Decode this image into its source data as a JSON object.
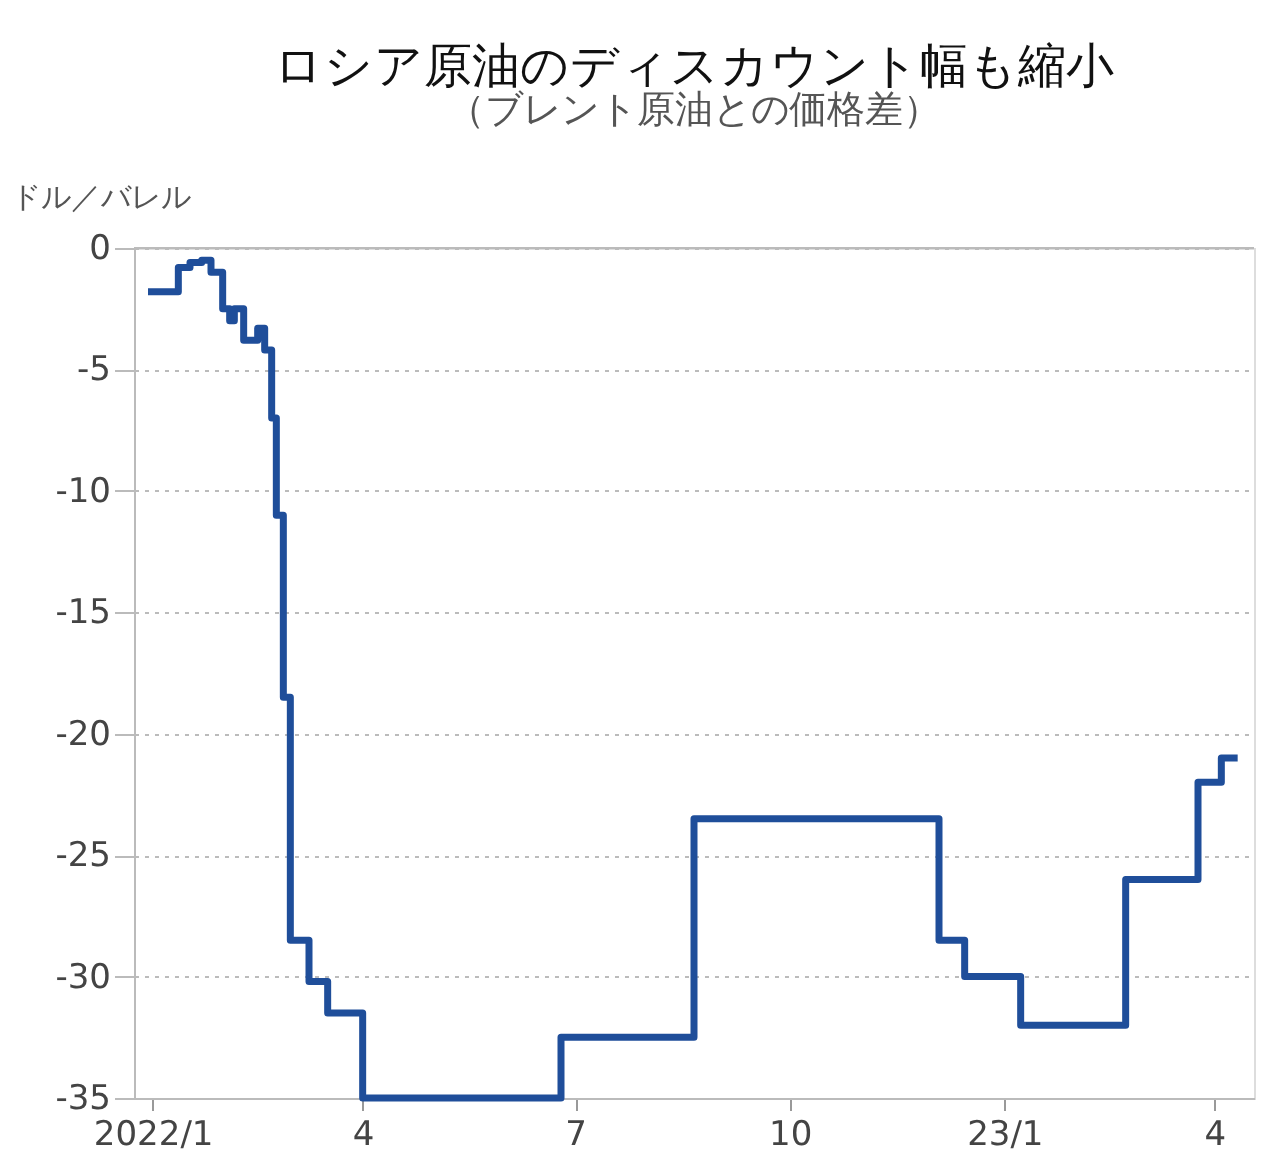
{
  "chart_data": {
    "type": "step",
    "title": "ロシア原油のディスカウント幅も縮小",
    "subtitle": "（ブレント原油との価格差）",
    "ylabel": "ドル／バレル",
    "x": [
      "2021-12-30",
      "2022-01-12",
      "2022-01-17",
      "2022-01-22",
      "2022-01-26",
      "2022-01-31",
      "2022-02-03",
      "2022-02-05",
      "2022-02-09",
      "2022-02-13",
      "2022-02-15",
      "2022-02-18",
      "2022-02-21",
      "2022-02-23",
      "2022-02-26",
      "2022-03-01",
      "2022-03-09",
      "2022-03-17",
      "2022-04-01",
      "2022-06-25",
      "2022-08-21",
      "2022-12-04",
      "2022-12-15",
      "2023-01-08",
      "2023-02-22",
      "2023-03-25",
      "2023-04-04",
      "2023-04-11"
    ],
    "series": [
      {
        "color": "#1f4e9a",
        "values": [
          -1.8,
          -0.8,
          -0.6,
          -0.5,
          -1.0,
          -2.5,
          -3.0,
          -2.5,
          -3.8,
          -3.8,
          -3.3,
          -4.2,
          -7.0,
          -11.0,
          -18.5,
          -28.5,
          -30.2,
          -31.5,
          -35.0,
          -32.5,
          -23.5,
          -28.5,
          -30.0,
          -32.0,
          -26.0,
          -22.0,
          -21.0,
          -21.0
        ]
      }
    ],
    "xlim": [
      "2021-12-24",
      "2023-04-18"
    ],
    "xticks": [
      {
        "value": "2022-01-01",
        "label": "2022/1"
      },
      {
        "value": "2022-04-01",
        "label": "4"
      },
      {
        "value": "2022-07-01",
        "label": "7"
      },
      {
        "value": "2022-10-01",
        "label": "10"
      },
      {
        "value": "2023-01-01",
        "label": "23/1"
      },
      {
        "value": "2023-04-01",
        "label": "4"
      }
    ],
    "ylim": [
      -35,
      0
    ],
    "yticks": [
      0,
      -5,
      -10,
      -15,
      -20,
      -25,
      -30,
      -35
    ],
    "grid": "y",
    "legend": false,
    "line_style": "solid",
    "marker": "none"
  }
}
